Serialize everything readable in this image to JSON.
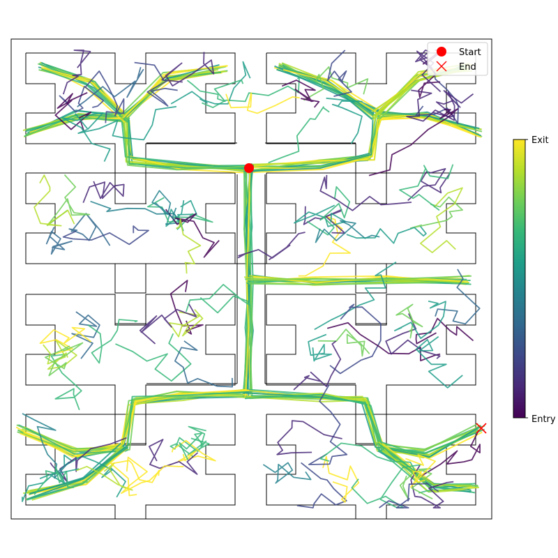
{
  "legend": {
    "start_label": "Start",
    "end_label": "End",
    "start_color": "#ff0000",
    "end_color": "#ff0000"
  },
  "colorbar": {
    "top_label": "Exit",
    "bottom_label": "Entry",
    "colormap": "viridis",
    "colors": [
      "#440154",
      "#482878",
      "#3e4989",
      "#31688e",
      "#26828e",
      "#1f9e89",
      "#35b779",
      "#6ece58",
      "#b5de2b",
      "#fde725"
    ]
  },
  "maze": {
    "style": "binary-tree (H-shaped) labyrinth",
    "wall_color": "#000000",
    "levels": 6
  },
  "trajectory": {
    "color_encodes": "time from entry to exit",
    "start": "maze center junction",
    "end": "right edge of bottom-right branch"
  }
}
